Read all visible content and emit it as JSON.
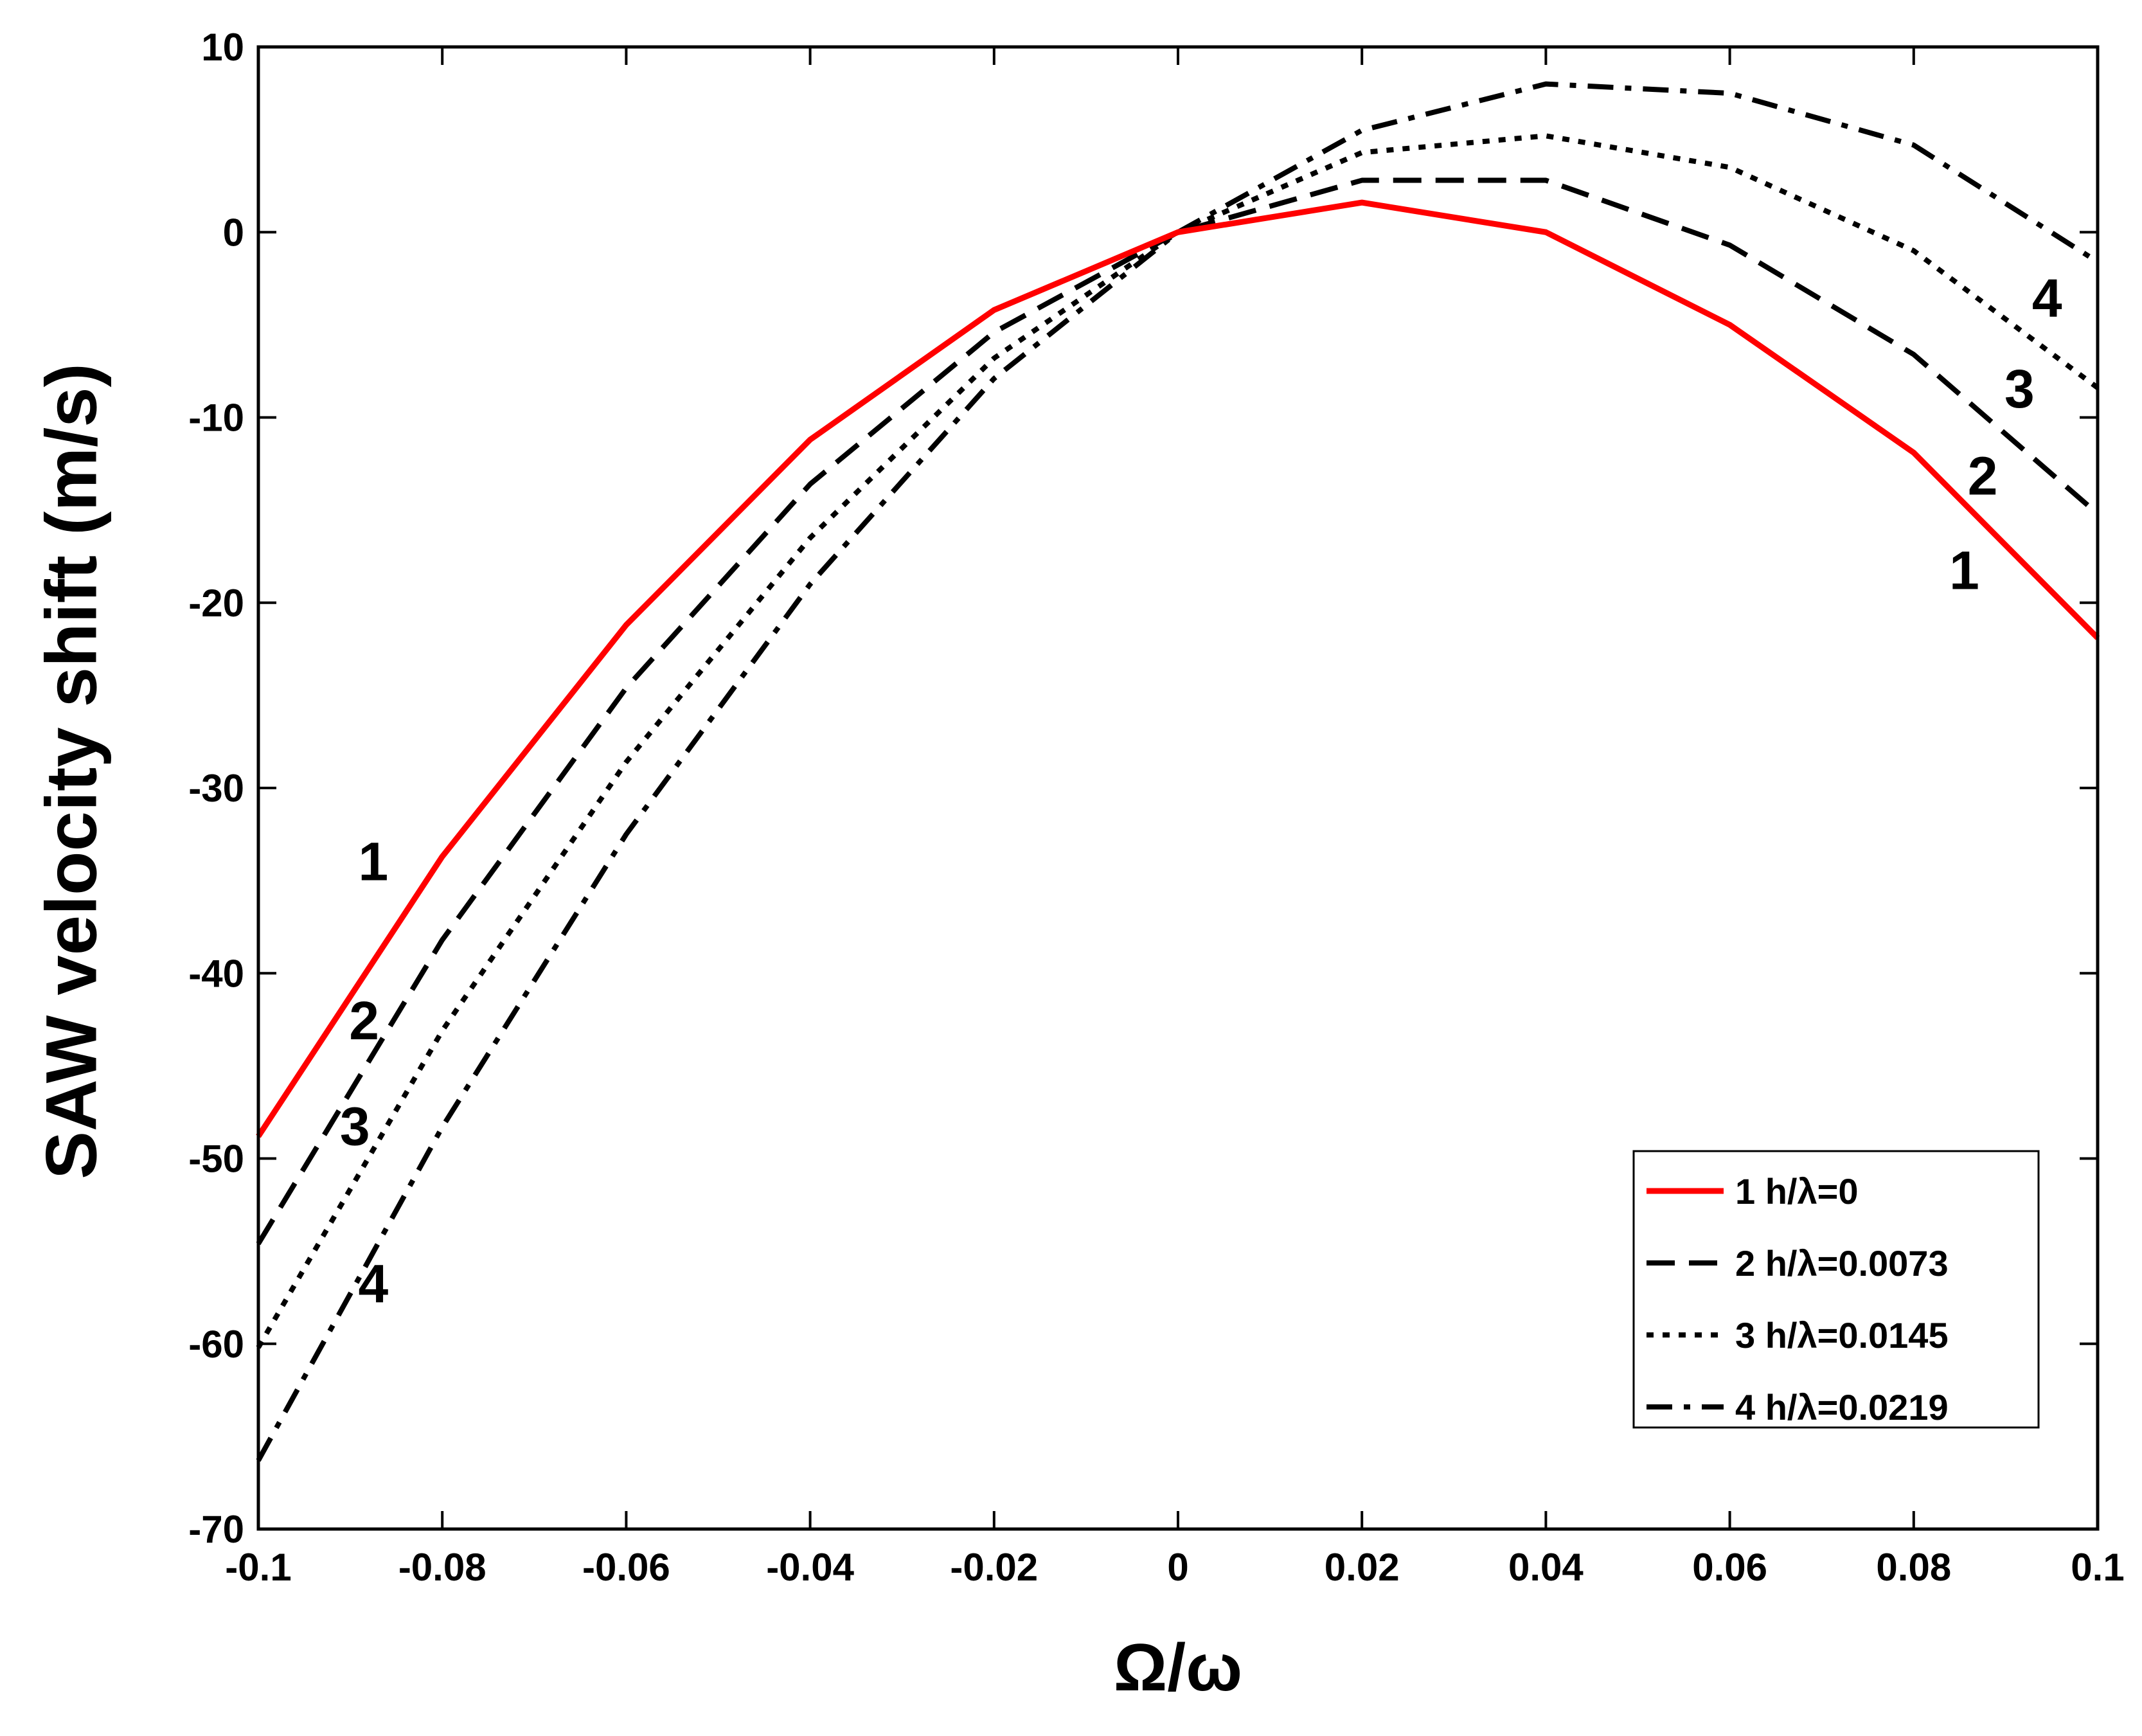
{
  "chart_data": {
    "type": "line",
    "title": "",
    "xlabel": "Ω/ω",
    "ylabel": "SAW velocity shift (m/s)",
    "xlim": [
      -0.1,
      0.1
    ],
    "ylim": [
      -70,
      10
    ],
    "grid": false,
    "legend_position": "bottom-right",
    "x": [
      -0.1,
      -0.08,
      -0.06,
      -0.04,
      -0.02,
      0,
      0.02,
      0.04,
      0.06,
      0.08,
      0.1
    ],
    "x_tick_labels": [
      "-0.1",
      "-0.08",
      "-0.06",
      "-0.04",
      "-0.02",
      "0",
      "0.02",
      "0.04",
      "0.06",
      "0.08",
      "0.1"
    ],
    "y_ticks": [
      10,
      0,
      -10,
      -20,
      -30,
      -40,
      -50,
      -60,
      -70
    ],
    "y_tick_labels": [
      "10",
      "0",
      "-10",
      "-20",
      "-30",
      "-40",
      "-50",
      "-60",
      "-70"
    ],
    "series": [
      {
        "name": "1 h/λ=0",
        "id": "1",
        "color": "#ff0000",
        "style": "solid",
        "values": [
          -48.8,
          -33.7,
          -21.2,
          -11.2,
          -4.2,
          0,
          1.6,
          0,
          -5.0,
          -11.9,
          -21.9
        ]
      },
      {
        "name": "2 h/λ=0.0073",
        "id": "2",
        "color": "#000000",
        "style": "dashed",
        "values": [
          -54.6,
          -38.2,
          -24.6,
          -13.6,
          -5.4,
          0,
          2.8,
          2.8,
          -0.7,
          -6.6,
          -15.2
        ]
      },
      {
        "name": "3 h/λ=0.0145",
        "id": "3",
        "color": "#000000",
        "style": "dotted",
        "values": [
          -60.2,
          -43.1,
          -28.6,
          -16.5,
          -6.8,
          0,
          4.3,
          5.2,
          3.5,
          -1.0,
          -8.4
        ]
      },
      {
        "name": "4 h/λ=0.0219",
        "id": "4",
        "color": "#000000",
        "style": "dashdot",
        "values": [
          -66.3,
          -48.3,
          -32.5,
          -19.0,
          -7.9,
          0,
          5.5,
          8.0,
          7.5,
          4.7,
          -1.6
        ]
      }
    ],
    "annotations": [
      {
        "text": "1",
        "x": -0.0875,
        "y": -34.2
      },
      {
        "text": "2",
        "x": -0.0885,
        "y": -42.8
      },
      {
        "text": "3",
        "x": -0.0895,
        "y": -48.5
      },
      {
        "text": "4",
        "x": -0.0875,
        "y": -57.0
      },
      {
        "text": "4",
        "x": 0.0945,
        "y": -3.8
      },
      {
        "text": "3",
        "x": 0.0915,
        "y": -8.7
      },
      {
        "text": "2",
        "x": 0.0875,
        "y": -13.4
      },
      {
        "text": "1",
        "x": 0.0855,
        "y": -18.5
      }
    ]
  }
}
